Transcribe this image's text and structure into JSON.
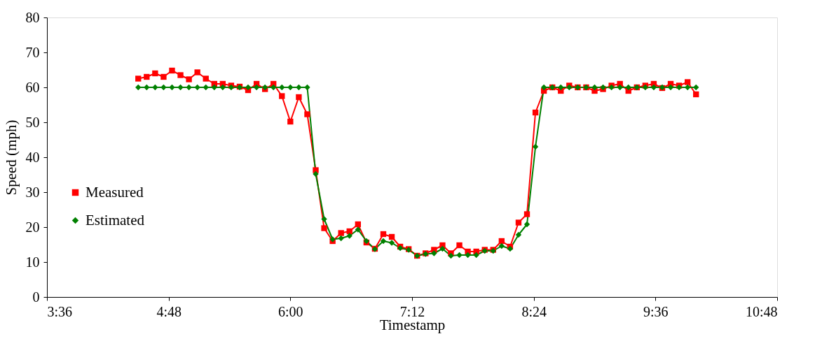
{
  "chart_data": {
    "type": "line",
    "xlabel": "Timestamp",
    "ylabel": "Speed (mph)",
    "x": [
      4.5,
      4.5833,
      4.6667,
      4.75,
      4.8333,
      4.9167,
      5.0,
      5.0833,
      5.1667,
      5.25,
      5.3333,
      5.4167,
      5.5,
      5.5833,
      5.6667,
      5.75,
      5.8333,
      5.9167,
      6.0,
      6.0833,
      6.1667,
      6.25,
      6.3333,
      6.4167,
      6.5,
      6.5833,
      6.6667,
      6.75,
      6.8333,
      6.9167,
      7.0,
      7.0833,
      7.1667,
      7.25,
      7.3333,
      7.4167,
      7.5,
      7.5833,
      7.6667,
      7.75,
      7.8333,
      7.9167,
      8.0,
      8.0833,
      8.1667,
      8.25,
      8.3333,
      8.4167,
      8.5,
      8.5833,
      8.6667,
      8.75,
      8.8333,
      8.9167,
      9.0,
      9.0833,
      9.1667,
      9.25,
      9.3333,
      9.4167,
      9.5,
      9.5833,
      9.6667,
      9.75,
      9.8333,
      9.9167,
      10.0
    ],
    "series": [
      {
        "name": "Measured",
        "color": "#ff0000",
        "marker": "square",
        "values": [
          62.5,
          63,
          64,
          63,
          64.8,
          63.5,
          62.3,
          64.3,
          62.5,
          61,
          61,
          60.5,
          60.2,
          59.2,
          61,
          59.5,
          61,
          57.5,
          50.2,
          57.2,
          52.3,
          36.3,
          19.7,
          16,
          18.3,
          18.8,
          20.8,
          15.6,
          13.8,
          18,
          17.2,
          14.4,
          13.7,
          11.8,
          12.5,
          13.5,
          14.8,
          12.5,
          14.8,
          13,
          13,
          13.5,
          13.5,
          16,
          14.4,
          21.3,
          23.7,
          52.8,
          59,
          60,
          59,
          60.5,
          60,
          60,
          59,
          59.5,
          60.5,
          61,
          59,
          60,
          60.5,
          61,
          59.8,
          61,
          60.5,
          61.5,
          58
        ]
      },
      {
        "name": "Estimated",
        "color": "#008000",
        "marker": "diamond",
        "values": [
          60,
          60,
          60,
          60,
          60,
          60,
          60,
          60,
          60,
          60,
          60,
          60,
          60,
          60,
          60,
          60,
          60,
          60,
          60,
          60,
          60,
          35.2,
          22.3,
          16.5,
          16.8,
          17.5,
          19.3,
          16,
          13.7,
          16,
          15.5,
          14,
          13.5,
          11.8,
          12.3,
          12.5,
          13.8,
          11.8,
          12,
          12,
          12,
          13.2,
          13.2,
          14.6,
          13.8,
          17.8,
          20.8,
          43,
          60,
          60,
          60,
          60,
          60,
          60,
          60,
          60,
          60,
          60,
          60,
          60,
          60,
          60,
          60,
          60,
          60,
          60,
          60
        ]
      }
    ],
    "xlim": [
      3.6,
      10.8
    ],
    "xticks": [
      {
        "value": 3.6,
        "label": "3:36"
      },
      {
        "value": 4.8,
        "label": "4:48"
      },
      {
        "value": 6.0,
        "label": "6:00"
      },
      {
        "value": 7.2,
        "label": "7:12"
      },
      {
        "value": 8.4,
        "label": "8:24"
      },
      {
        "value": 9.6,
        "label": "9:36"
      },
      {
        "value": 10.8,
        "label": "10:48"
      }
    ],
    "ylim": [
      0,
      80
    ],
    "yticks": [
      0,
      10,
      20,
      30,
      40,
      50,
      60,
      70,
      80
    ],
    "grid": false,
    "legend": "bottom left",
    "line_style": "solid"
  }
}
